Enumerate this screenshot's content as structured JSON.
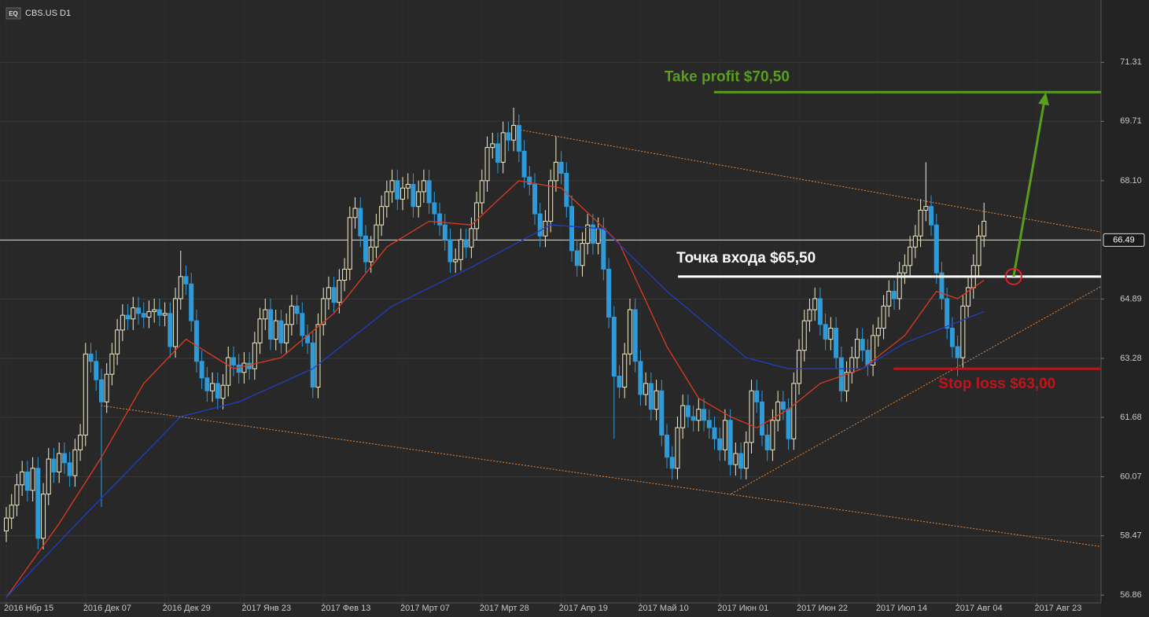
{
  "chart_data": {
    "type": "candlestick",
    "title": "CBS.US D1",
    "badge": "EQ",
    "xlim": [
      -1.19,
      207.14
    ],
    "ylim": [
      56.65,
      73.0
    ],
    "yticks": [
      71.31,
      69.71,
      {
        "value": 68.1,
        "label": "68.10"
      },
      64.89,
      63.28,
      61.68,
      60.07,
      58.47,
      56.86
    ],
    "xticks": [
      {
        "value": 0,
        "label": "2016 Нбр 15"
      },
      {
        "value": 15,
        "label": "2016 Дек 07"
      },
      {
        "value": 30,
        "label": "2016 Дек 29"
      },
      {
        "value": 45,
        "label": "2017 Янв 23"
      },
      {
        "value": 60,
        "label": "2017 Фев 13"
      },
      {
        "value": 75,
        "label": "2017 Мрт 07"
      },
      {
        "value": 90,
        "label": "2017 Мрт 28"
      },
      {
        "value": 105,
        "label": "2017 Апр 19"
      },
      {
        "value": 120,
        "label": "2017 Май 10"
      },
      {
        "value": 135,
        "label": "2017 Июн 01"
      },
      {
        "value": 150,
        "label": "2017 Июн 22"
      },
      {
        "value": 165,
        "label": "2017 Июл 14"
      },
      {
        "value": 180,
        "label": "2017 Авг 04"
      },
      {
        "value": 195,
        "label": "2017 Авг 23"
      }
    ],
    "grid": true,
    "last_price": 66.49,
    "last_price_color": "#e6e69a",
    "candles": {
      "up_color": "#f2ecc4",
      "down_color": "#2f9ad8",
      "open": [
        58.6,
        58.95,
        59.3,
        59.85,
        60.2,
        59.7,
        60.3,
        58.4,
        59.6,
        60.55,
        60.2,
        60.7,
        60.45,
        60.1,
        60.8,
        61.2,
        63.4,
        63.2,
        62.7,
        62.1,
        62.85,
        63.4,
        64.05,
        64.45,
        64.35,
        64.65,
        64.5,
        64.4,
        64.55,
        64.6,
        64.45,
        64.5,
        63.6,
        64.9,
        65.5,
        65.3,
        64.3,
        63.2,
        62.75,
        62.4,
        62.6,
        62.2,
        62.55,
        63.3,
        63.1,
        62.9,
        63.15,
        63.0,
        63.7,
        64.35,
        64.6,
        63.8,
        64.3,
        63.7,
        64.2,
        64.7,
        64.5,
        63.9,
        63.7,
        62.5,
        64.2,
        64.9,
        65.2,
        64.8,
        65.4,
        65.7,
        67.1,
        67.35,
        66.6,
        65.9,
        66.3,
        66.9,
        67.4,
        67.8,
        68.1,
        67.6,
        67.9,
        68.0,
        67.4,
        67.8,
        68.1,
        67.5,
        67.2,
        66.9,
        66.5,
        65.9,
        65.96,
        66.5,
        66.3,
        66.8,
        67.5,
        68.1,
        69.0,
        69.1,
        68.6,
        69.4,
        69.2,
        69.6,
        68.9,
        68.2,
        68.0,
        67.2,
        66.6,
        67.0,
        68.1,
        68.6,
        68.3,
        67.4,
        66.2,
        65.8,
        66.4,
        66.9,
        66.4,
        66.8,
        65.7,
        64.4,
        62.8,
        62.5,
        63.4,
        64.6,
        63.2,
        62.3,
        62.6,
        61.9,
        62.4,
        61.2,
        60.6,
        60.3,
        61.4,
        62.0,
        61.7,
        61.6,
        61.9,
        61.6,
        61.4,
        61.1,
        60.8,
        61.6,
        60.4,
        60.7,
        60.3,
        61.0,
        62.4,
        62.1,
        61.2,
        60.8,
        61.6,
        62.1,
        61.9,
        61.1,
        62.6,
        63.5,
        64.3,
        64.6,
        64.9,
        64.2,
        63.8,
        64.1,
        63.3,
        62.4,
        62.9,
        63.3,
        63.8,
        63.5,
        63.1,
        63.9,
        64.1,
        64.7,
        65.1,
        64.9,
        65.6,
        65.8,
        66.3,
        66.6,
        67.3,
        67.4,
        66.9,
        65.6,
        64.9,
        64.1,
        63.6,
        63.3,
        64.7,
        65.2,
        65.8,
        66.6
      ],
      "high": [
        59.25,
        59.6,
        60.15,
        60.5,
        60.5,
        60.6,
        60.6,
        59.9,
        60.85,
        60.85,
        61.0,
        61.0,
        60.75,
        61.1,
        61.5,
        63.7,
        63.7,
        63.5,
        63.0,
        63.15,
        63.7,
        64.35,
        64.75,
        64.75,
        64.95,
        64.95,
        64.8,
        64.85,
        64.9,
        64.9,
        64.8,
        64.8,
        65.2,
        66.2,
        65.8,
        65.6,
        64.6,
        63.5,
        63.05,
        62.9,
        62.9,
        62.85,
        63.6,
        63.6,
        63.4,
        63.45,
        63.45,
        64.0,
        64.65,
        64.9,
        64.9,
        64.6,
        64.6,
        64.5,
        65.0,
        65.0,
        64.8,
        64.2,
        64.0,
        64.5,
        65.2,
        65.5,
        65.5,
        65.7,
        66.0,
        67.4,
        67.65,
        67.65,
        66.9,
        66.6,
        67.2,
        67.7,
        68.1,
        68.4,
        68.4,
        68.2,
        68.3,
        68.3,
        68.1,
        68.4,
        68.4,
        67.8,
        67.5,
        67.2,
        66.8,
        66.26,
        66.8,
        66.8,
        67.1,
        67.8,
        68.4,
        69.3,
        69.4,
        69.4,
        69.7,
        69.7,
        70.08,
        69.9,
        69.2,
        68.5,
        68.3,
        67.5,
        67.3,
        68.4,
        69.3,
        68.9,
        68.6,
        67.7,
        66.5,
        66.7,
        67.2,
        67.2,
        67.1,
        67.1,
        66.0,
        64.7,
        63.1,
        63.7,
        64.9,
        64.9,
        63.5,
        62.9,
        62.9,
        62.7,
        62.7,
        61.5,
        60.9,
        61.7,
        62.3,
        62.3,
        62.0,
        62.2,
        62.2,
        61.9,
        61.7,
        61.4,
        61.9,
        61.9,
        61.0,
        61.0,
        61.3,
        62.7,
        62.7,
        62.4,
        61.5,
        61.9,
        62.4,
        62.4,
        62.2,
        62.9,
        63.8,
        64.6,
        64.9,
        65.2,
        65.2,
        64.5,
        64.4,
        64.4,
        63.6,
        63.2,
        63.6,
        64.1,
        64.1,
        63.8,
        64.2,
        64.4,
        65.0,
        65.4,
        65.4,
        65.9,
        66.1,
        66.6,
        66.9,
        67.6,
        68.6,
        67.7,
        67.2,
        65.9,
        65.2,
        64.4,
        63.9,
        65.0,
        65.5,
        66.1,
        66.9,
        67.5
      ],
      "low": [
        58.3,
        58.65,
        59.0,
        59.55,
        59.4,
        59.4,
        58.1,
        58.1,
        59.3,
        59.9,
        59.9,
        60.15,
        59.8,
        59.8,
        60.5,
        60.9,
        62.9,
        62.4,
        59.25,
        61.8,
        62.55,
        63.1,
        63.75,
        64.05,
        64.05,
        64.2,
        64.1,
        64.1,
        64.25,
        64.15,
        64.15,
        63.3,
        63.3,
        64.6,
        65.0,
        64.0,
        62.9,
        62.45,
        62.1,
        62.1,
        61.9,
        61.9,
        62.25,
        62.8,
        62.6,
        62.6,
        62.7,
        62.7,
        63.4,
        64.05,
        63.5,
        63.5,
        63.4,
        63.4,
        63.9,
        64.2,
        63.6,
        63.4,
        62.2,
        62.2,
        63.9,
        64.6,
        64.5,
        64.5,
        65.1,
        65.4,
        66.8,
        66.3,
        65.6,
        65.6,
        66.0,
        66.6,
        67.1,
        67.5,
        67.3,
        67.3,
        67.6,
        67.1,
        67.1,
        67.5,
        67.2,
        66.9,
        66.6,
        66.2,
        65.6,
        65.6,
        65.66,
        66.0,
        66.0,
        66.5,
        67.2,
        67.8,
        68.7,
        68.3,
        68.3,
        68.9,
        68.9,
        68.6,
        67.9,
        67.7,
        66.9,
        66.3,
        66.3,
        66.7,
        67.8,
        68.0,
        67.1,
        65.9,
        65.5,
        65.5,
        66.1,
        66.1,
        66.1,
        65.4,
        64.1,
        61.1,
        62.2,
        62.2,
        63.1,
        62.9,
        62.0,
        62.0,
        61.6,
        61.6,
        60.9,
        60.3,
        60.0,
        60.0,
        61.1,
        61.4,
        61.3,
        61.3,
        61.3,
        61.1,
        60.8,
        60.5,
        60.5,
        60.1,
        60.1,
        60.0,
        60.0,
        60.7,
        61.8,
        60.9,
        60.5,
        60.5,
        61.3,
        61.6,
        60.8,
        60.8,
        62.3,
        63.2,
        64.0,
        64.3,
        63.9,
        63.5,
        63.5,
        63.0,
        62.1,
        62.1,
        62.6,
        63.0,
        63.2,
        62.8,
        62.8,
        63.6,
        63.8,
        64.4,
        64.6,
        64.6,
        65.3,
        65.5,
        66.0,
        66.3,
        67.0,
        66.6,
        65.3,
        64.6,
        63.8,
        63.3,
        62.8,
        63.0,
        64.4,
        64.9,
        65.5,
        66.3
      ],
      "close": [
        58.95,
        59.3,
        59.85,
        60.2,
        59.7,
        60.3,
        58.4,
        59.6,
        60.55,
        60.2,
        60.7,
        60.45,
        60.1,
        60.8,
        61.2,
        63.4,
        63.2,
        62.7,
        62.1,
        62.85,
        63.4,
        64.05,
        64.45,
        64.35,
        64.65,
        64.5,
        64.4,
        64.55,
        64.6,
        64.45,
        64.5,
        63.6,
        64.9,
        65.5,
        65.3,
        64.3,
        63.2,
        62.75,
        62.4,
        62.6,
        62.2,
        62.55,
        63.3,
        63.1,
        62.9,
        63.15,
        63.0,
        63.7,
        64.35,
        64.6,
        63.8,
        64.3,
        63.7,
        64.2,
        64.7,
        64.5,
        63.9,
        63.7,
        62.5,
        64.2,
        64.9,
        65.2,
        64.8,
        65.4,
        65.7,
        67.1,
        67.35,
        66.6,
        65.9,
        66.3,
        66.9,
        67.4,
        67.8,
        68.1,
        67.6,
        67.9,
        68.0,
        67.4,
        67.8,
        68.1,
        67.5,
        67.2,
        66.9,
        66.5,
        65.9,
        65.96,
        66.5,
        66.3,
        66.8,
        67.5,
        68.1,
        69.0,
        69.1,
        68.6,
        69.4,
        69.2,
        69.6,
        68.9,
        68.2,
        68.0,
        67.2,
        66.6,
        67.0,
        68.1,
        68.6,
        68.3,
        67.4,
        66.2,
        65.8,
        66.4,
        66.9,
        66.4,
        66.8,
        65.7,
        64.4,
        62.8,
        62.5,
        63.4,
        64.6,
        63.2,
        62.3,
        62.6,
        61.9,
        62.4,
        61.2,
        60.6,
        60.3,
        61.4,
        62.0,
        61.7,
        61.6,
        61.9,
        61.6,
        61.4,
        61.1,
        60.8,
        61.6,
        60.4,
        60.7,
        60.3,
        61.0,
        62.4,
        62.1,
        61.2,
        60.8,
        61.6,
        62.1,
        61.9,
        61.1,
        62.6,
        63.5,
        64.3,
        64.6,
        64.9,
        64.2,
        63.8,
        64.1,
        63.3,
        62.4,
        62.9,
        63.3,
        63.8,
        63.5,
        63.1,
        63.9,
        64.1,
        64.7,
        65.1,
        64.9,
        65.6,
        65.8,
        66.3,
        66.6,
        67.3,
        67.4,
        66.9,
        65.6,
        64.9,
        64.1,
        63.6,
        63.3,
        64.7,
        65.2,
        65.8,
        66.6,
        67.0
      ]
    },
    "lines": [
      {
        "color": "#e0391e",
        "x": [
          0,
          10,
          18,
          26,
          34,
          43,
          52,
          62,
          72,
          80,
          88,
          97,
          105,
          111,
          116,
          125,
          131,
          137,
          142,
          148,
          154,
          162,
          170,
          176,
          180,
          185
        ],
        "values": [
          56.8,
          58.8,
          60.6,
          62.6,
          63.8,
          63.0,
          63.3,
          64.5,
          66.3,
          67.0,
          66.9,
          68.1,
          67.9,
          67.1,
          66.4,
          63.6,
          62.2,
          61.7,
          61.4,
          61.9,
          62.6,
          63.0,
          63.9,
          65.1,
          64.9,
          65.4
        ]
      },
      {
        "color": "#1f3fc4",
        "x": [
          0,
          14,
          33,
          44,
          58,
          73,
          88,
          103,
          113,
          125,
          140,
          148,
          162,
          170,
          178,
          185
        ],
        "values": [
          56.8,
          58.9,
          61.7,
          62.1,
          63.0,
          64.7,
          65.75,
          66.9,
          66.8,
          65.1,
          63.3,
          63.0,
          63.0,
          63.7,
          64.15,
          64.55
        ]
      }
    ],
    "trendlines": {
      "color": "#e8893a",
      "lines": [
        {
          "x": [
            95.5,
            207
          ],
          "values": [
            69.52,
            66.71
          ]
        },
        {
          "x": [
            17.9,
            207
          ],
          "values": [
            62.0,
            58.18
          ]
        },
        {
          "x": [
            137.2,
            207
          ],
          "values": [
            59.61,
            65.22
          ]
        }
      ]
    },
    "levels": [
      {
        "label": "Take profit $70,50",
        "value": 70.5,
        "from": 133.9,
        "color": "#5a9e1e"
      },
      {
        "label": "Точка входа $65,50",
        "value": 65.5,
        "from": 127.1,
        "color": "#ffffff"
      },
      {
        "label": "Stop loss $63,00",
        "value": 63.0,
        "from": 167.9,
        "color": "#c0141a"
      }
    ],
    "arrow": {
      "color": "#5a9e1e",
      "marker_color": "#e0202a",
      "x": [
        190.6,
        196.7
      ],
      "values": [
        65.5,
        70.5
      ]
    }
  }
}
